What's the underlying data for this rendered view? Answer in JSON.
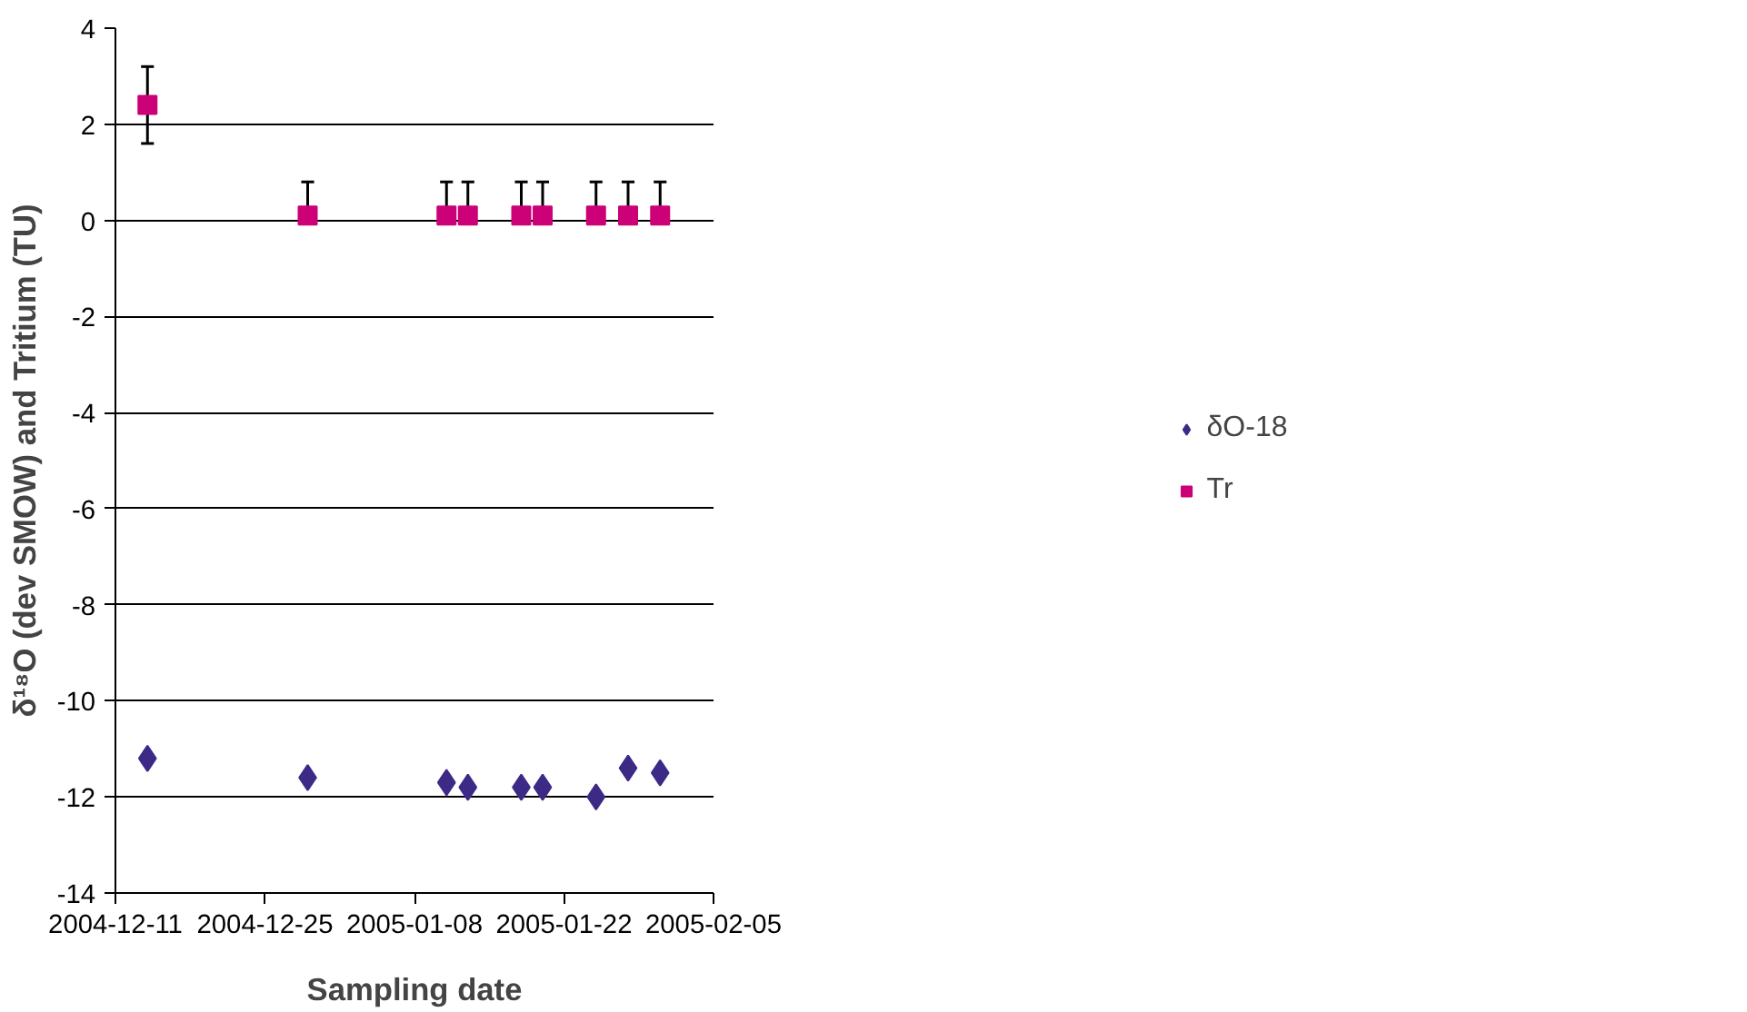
{
  "chart_data": {
    "type": "scatter",
    "xlabel": "Sampling date",
    "ylabel": "δ¹⁸O (dev SMOW) and Tritium (TU)",
    "xlim": [
      "2004-12-11",
      "2005-02-05"
    ],
    "xticks": [
      "2004-12-11",
      "2004-12-25",
      "2005-01-08",
      "2005-01-22",
      "2005-02-05"
    ],
    "ylim": [
      -14,
      4
    ],
    "yticks": [
      -14,
      -12,
      -10,
      -8,
      -6,
      -4,
      -2,
      0,
      2,
      4
    ],
    "grid": "y",
    "legend": "right",
    "x": [
      "2004-12-14",
      "2004-12-29",
      "2005-01-11",
      "2005-01-13",
      "2005-01-18",
      "2005-01-20",
      "2005-01-25",
      "2005-01-28",
      "2005-01-31"
    ],
    "series": [
      {
        "name": "δO-18",
        "color": "#3d2a86",
        "marker": "diamond",
        "values": [
          -11.2,
          -11.6,
          -11.7,
          -11.8,
          -11.8,
          -11.8,
          -12.0,
          -11.4,
          -11.5
        ]
      },
      {
        "name": "Tr",
        "color": "#cc0077",
        "marker": "square",
        "values": [
          2.4,
          0.1,
          0.1,
          0.1,
          0.1,
          0.1,
          0.1,
          0.1,
          0.1
        ],
        "errors": [
          [
            1.6,
            3.2
          ],
          [
            0.1,
            0.8
          ],
          [
            0.1,
            0.8
          ],
          [
            0.1,
            0.8
          ],
          [
            0.1,
            0.8
          ],
          [
            0.1,
            0.8
          ],
          [
            0.1,
            0.8
          ],
          [
            0.1,
            0.8
          ],
          [
            0.1,
            0.8
          ]
        ]
      }
    ]
  }
}
